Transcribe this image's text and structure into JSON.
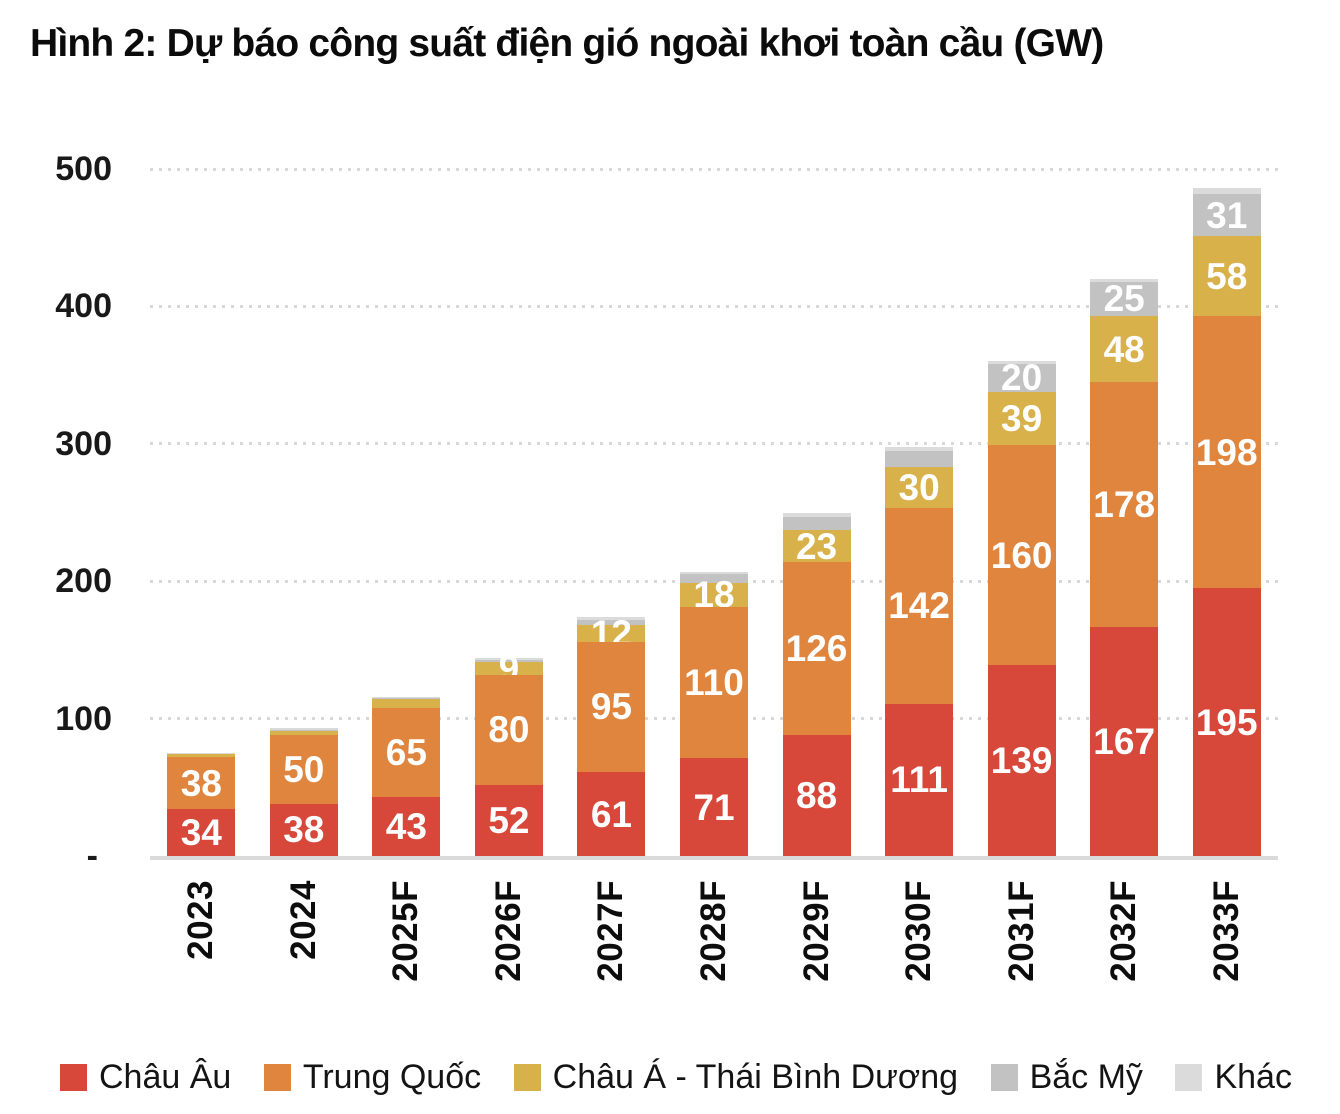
{
  "title": "Hình 2: Dự báo công suất điện gió ngoài khơi toàn cầu (GW)",
  "y_axis": {
    "ticks": [
      {
        "value": 500,
        "label": "500"
      },
      {
        "value": 400,
        "label": "400"
      },
      {
        "value": 300,
        "label": "300"
      },
      {
        "value": 200,
        "label": "200"
      },
      {
        "value": 100,
        "label": "100"
      },
      {
        "value": 0,
        "label": "-"
      }
    ]
  },
  "chart_data": {
    "type": "bar",
    "stacked": true,
    "title": "Hình 2: Dự báo công suất điện gió ngoài khơi toàn cầu (GW)",
    "xlabel": "",
    "ylabel": "GW",
    "ylim": [
      0,
      500
    ],
    "grid": "horizontal dotted every 100",
    "legend_position": "bottom",
    "categories": [
      "2023",
      "2024",
      "2025F",
      "2026F",
      "2027F",
      "2028F",
      "2029F",
      "2030F",
      "2031F",
      "2032F",
      "2033F"
    ],
    "series": [
      {
        "name": "Châu Âu",
        "color": "#d7473a",
        "values": [
          34,
          38,
          43,
          52,
          61,
          71,
          88,
          111,
          139,
          167,
          195
        ],
        "labels": [
          "34",
          "38",
          "43",
          "52",
          "61",
          "71",
          "88",
          "111",
          "139",
          "167",
          "195"
        ]
      },
      {
        "name": "Trung Quốc",
        "color": "#e0853e",
        "values": [
          38,
          50,
          65,
          80,
          95,
          110,
          126,
          142,
          160,
          178,
          198
        ],
        "labels": [
          "38",
          "50",
          "65",
          "80",
          "95",
          "110",
          "126",
          "142",
          "160",
          "178",
          "198"
        ]
      },
      {
        "name": "Châu Á - Thái Bình Dương",
        "color": "#d8b14a",
        "values": [
          2,
          3,
          6,
          9,
          12,
          18,
          23,
          30,
          39,
          48,
          58
        ],
        "labels": [
          "",
          "",
          "",
          "9",
          "12",
          "18",
          "23",
          "30",
          "39",
          "48",
          "58"
        ]
      },
      {
        "name": "Bắc Mỹ",
        "color": "#c2c2c2",
        "values": [
          0,
          1,
          1,
          2,
          4,
          6,
          10,
          12,
          20,
          25,
          31
        ],
        "labels": [
          "",
          "",
          "",
          "",
          "",
          "",
          "",
          "",
          "20",
          "25",
          "31"
        ]
      },
      {
        "name": "Khác",
        "color": "#dbdbdb",
        "values": [
          1,
          1,
          1,
          1,
          2,
          2,
          3,
          3,
          2,
          2,
          4
        ],
        "labels": [
          "",
          "",
          "",
          "",
          "",
          "",
          "",
          "",
          "",
          "",
          ""
        ]
      }
    ]
  },
  "legend": {
    "items": [
      {
        "label": "Châu Âu",
        "color": "#d7473a"
      },
      {
        "label": "Trung Quốc",
        "color": "#e0853e"
      },
      {
        "label": "Châu Á - Thái Bình Dương",
        "color": "#d8b14a"
      },
      {
        "label": "Bắc Mỹ",
        "color": "#c2c2c2"
      },
      {
        "label": "Khác",
        "color": "#dbdbdb"
      }
    ]
  }
}
